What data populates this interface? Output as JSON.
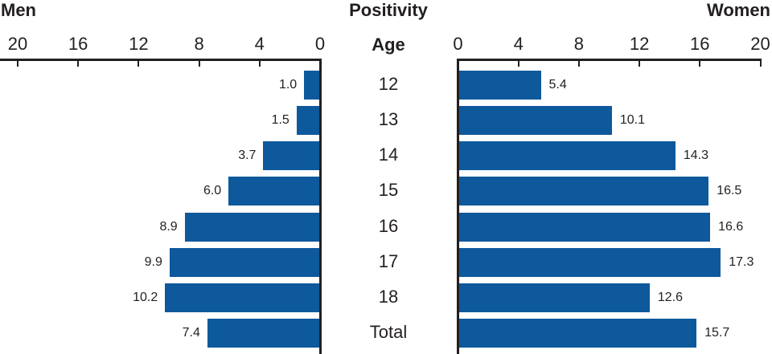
{
  "header": {
    "left_title": "Men",
    "center_title": "Positivity",
    "right_title": "Women",
    "age_header": "Age"
  },
  "colors": {
    "bar": "#0E599C",
    "axis": "#231f20",
    "text": "#231f20"
  },
  "chart_data": {
    "type": "bar",
    "orientation": "horizontal",
    "layout": "bidirectional-pyramid",
    "title": "Positivity",
    "categories": [
      "12",
      "13",
      "14",
      "15",
      "16",
      "17",
      "18",
      "Total"
    ],
    "series": [
      {
        "name": "Men",
        "direction": "left",
        "values": [
          1.0,
          1.5,
          3.7,
          6.0,
          8.9,
          9.9,
          10.2,
          7.4
        ]
      },
      {
        "name": "Women",
        "direction": "right",
        "values": [
          5.4,
          10.1,
          14.3,
          16.5,
          16.6,
          17.3,
          12.6,
          15.7
        ]
      }
    ],
    "xlim": [
      0,
      20
    ],
    "ticks": [
      0,
      4,
      8,
      12,
      16,
      20
    ],
    "value_label_decimals": 1,
    "grid": false,
    "legend": false
  }
}
